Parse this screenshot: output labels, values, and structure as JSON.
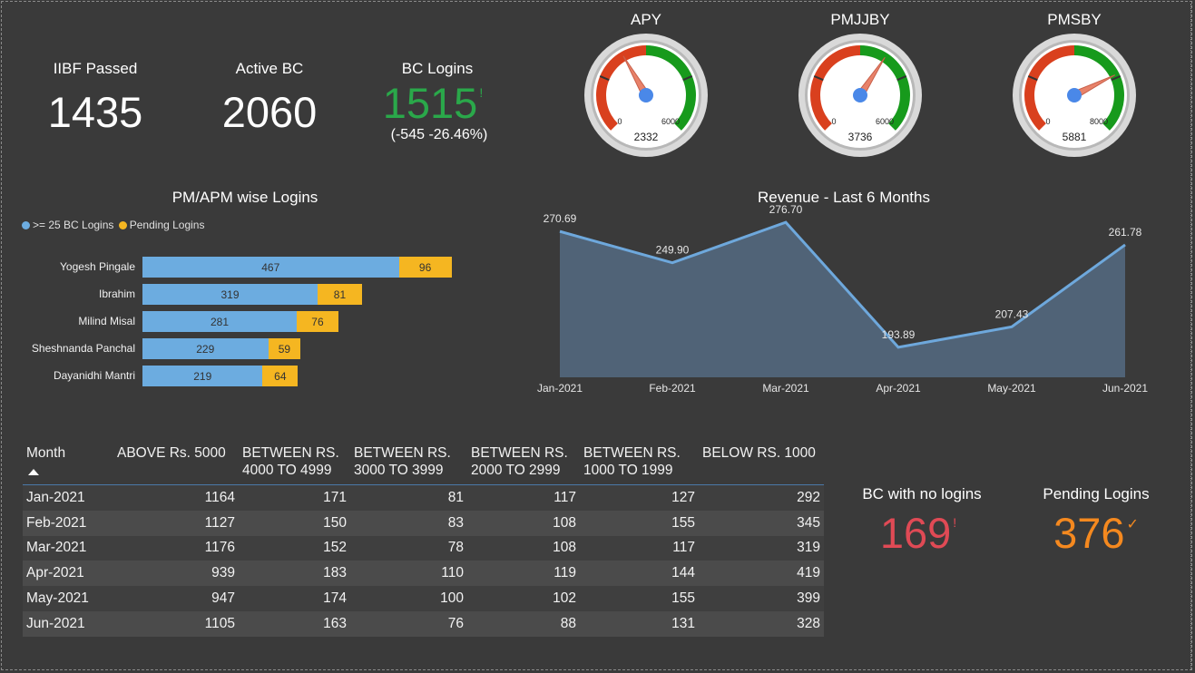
{
  "kpis": {
    "iibf": {
      "label": "IIBF Passed",
      "value": "1435"
    },
    "active_bc": {
      "label": "Active BC",
      "value": "2060"
    },
    "bc_logins": {
      "label": "BC Logins",
      "value": "1515",
      "indicator": "!",
      "delta": "(-545 -26.46%)",
      "color": "#2aa84a"
    }
  },
  "gauges": [
    {
      "title": "APY",
      "min": "0",
      "max": "6000",
      "value": "2332",
      "value_num": 2332,
      "max_num": 6000
    },
    {
      "title": "PMJJBY",
      "min": "0",
      "max": "6000",
      "value": "3736",
      "value_num": 3736,
      "max_num": 6000
    },
    {
      "title": "PMSBY",
      "min": "0",
      "max": "8000",
      "value": "5881",
      "value_num": 5881,
      "max_num": 8000
    }
  ],
  "logins_chart": {
    "title": "PM/APM wise Logins",
    "legend": [
      {
        "label": ">= 25 BC Logins",
        "color": "#6cace0"
      },
      {
        "label": "Pending Logins",
        "color": "#f5b621"
      }
    ]
  },
  "revenue_chart": {
    "title": "Revenue - Last 6 Months"
  },
  "chart_data": [
    {
      "type": "bar",
      "title": "PM/APM wise Logins",
      "categories": [
        "Yogesh Pingale",
        "Ibrahim",
        "Milind Misal",
        "Sheshnanda Panchal",
        "Dayanidhi Mantri"
      ],
      "series": [
        {
          "name": ">= 25 BC Logins",
          "values": [
            467,
            319,
            281,
            229,
            219
          ]
        },
        {
          "name": "Pending Logins",
          "values": [
            96,
            81,
            76,
            59,
            64
          ]
        }
      ]
    },
    {
      "type": "area",
      "title": "Revenue - Last 6 Months",
      "categories": [
        "Jan-2021",
        "Feb-2021",
        "Mar-2021",
        "Apr-2021",
        "May-2021",
        "Jun-2021"
      ],
      "values": [
        270.69,
        249.9,
        276.7,
        193.89,
        207.43,
        261.78
      ],
      "labels": [
        "270.69",
        "249.90",
        "276.70",
        "193.89",
        "207.43",
        "261.78"
      ],
      "ylim": [
        180,
        290
      ]
    }
  ],
  "table": {
    "headers": [
      "Month",
      "ABOVE Rs. 5000",
      "BETWEEN RS. 4000 TO 4999",
      "BETWEEN RS. 3000 TO 3999",
      "BETWEEN RS. 2000 TO 2999",
      "BETWEEN RS. 1000 TO 1999",
      "BELOW RS. 1000"
    ],
    "rows": [
      [
        "Jan-2021",
        "1164",
        "171",
        "81",
        "117",
        "127",
        "292"
      ],
      [
        "Feb-2021",
        "1127",
        "150",
        "83",
        "108",
        "155",
        "345"
      ],
      [
        "Mar-2021",
        "1176",
        "152",
        "78",
        "108",
        "117",
        "319"
      ],
      [
        "Apr-2021",
        "939",
        "183",
        "110",
        "119",
        "144",
        "419"
      ],
      [
        "May-2021",
        "947",
        "174",
        "100",
        "102",
        "155",
        "399"
      ],
      [
        "Jun-2021",
        "1105",
        "163",
        "76",
        "88",
        "131",
        "328"
      ]
    ]
  },
  "bottom_kpis": {
    "no_logins": {
      "label": "BC with no logins",
      "value": "169",
      "indicator": "!",
      "color": "#e04a55"
    },
    "pending": {
      "label": "Pending Logins",
      "value": "376",
      "indicator": "✓",
      "color": "#f5891f"
    }
  }
}
